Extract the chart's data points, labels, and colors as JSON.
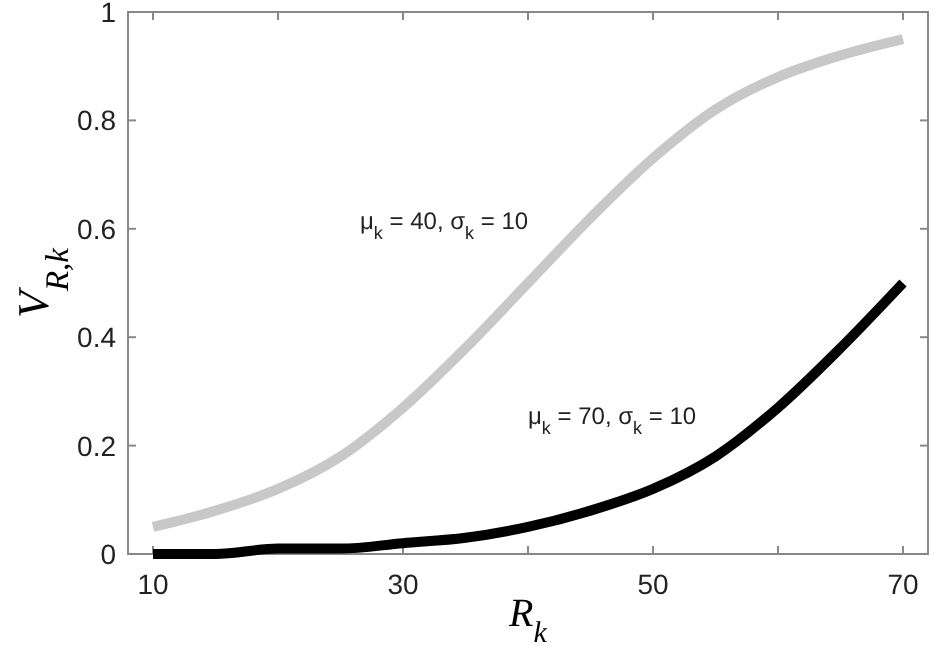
{
  "chart_data": {
    "type": "line",
    "xlabel": "R$_{k}$",
    "ylabel": "V$_{R,k}$",
    "x": [
      10,
      15,
      20,
      25,
      30,
      35,
      40,
      45,
      50,
      55,
      60,
      65,
      70
    ],
    "series": [
      {
        "color": "#c8c8c8",
        "values": [
          0.05,
          0.08,
          0.12,
          0.18,
          0.27,
          0.38,
          0.5,
          0.62,
          0.73,
          0.82,
          0.88,
          0.92,
          0.95
        ]
      },
      {
        "color": "#000000",
        "values": [
          0.0,
          0.0,
          0.01,
          0.01,
          0.02,
          0.03,
          0.05,
          0.08,
          0.12,
          0.18,
          0.27,
          0.38,
          0.5
        ]
      }
    ],
    "xlim": [
      8,
      72
    ],
    "xticks": [
      10,
      {
        "value": 20,
        "label": null
      },
      30,
      {
        "value": 40,
        "label": null
      },
      50,
      {
        "value": 60,
        "label": null
      },
      70
    ],
    "ylim": [
      0,
      1
    ],
    "yticks": [
      0,
      0.2,
      0.4,
      0.6,
      0.8,
      1
    ],
    "annotations": [
      "μ$_{k}$ = 40, σ$_{k}$ = 10",
      "μ$_{k}$ = 70, σ$_{k}$ = 10"
    ],
    "grid": false,
    "line_style": "solid"
  }
}
